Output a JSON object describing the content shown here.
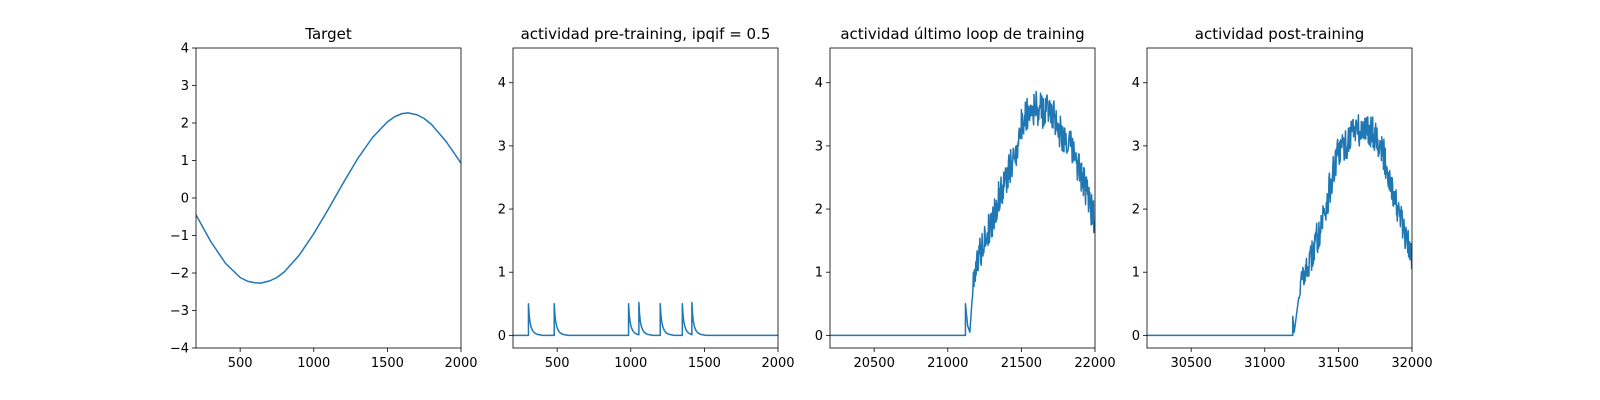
{
  "chart_data": [
    {
      "type": "line",
      "title": "Target",
      "xlabel": "",
      "ylabel": "",
      "xlim": [
        200,
        2000
      ],
      "ylim": [
        -4,
        4
      ],
      "xticks": [
        500,
        1000,
        1500,
        2000
      ],
      "yticks": [
        -4,
        -3,
        -2,
        -1,
        0,
        1,
        2,
        3,
        4
      ],
      "grid": false,
      "color": "#1f77b4",
      "series": [
        {
          "x": [
            200,
            300,
            400,
            500,
            550,
            600,
            640,
            700,
            750,
            800,
            900,
            1000,
            1100,
            1200,
            1300,
            1400,
            1500,
            1550,
            1600,
            1640,
            1700,
            1750,
            1800,
            1900,
            2000
          ],
          "y": [
            -0.45,
            -1.16,
            -1.74,
            -2.12,
            -2.22,
            -2.26,
            -2.27,
            -2.21,
            -2.12,
            -1.97,
            -1.53,
            -0.95,
            -0.29,
            0.4,
            1.06,
            1.62,
            2.03,
            2.17,
            2.25,
            2.27,
            2.22,
            2.12,
            1.96,
            1.5,
            0.93
          ]
        }
      ]
    },
    {
      "type": "line",
      "title": "actividad pre-training, ipqif = 0.5",
      "xlabel": "",
      "ylabel": "",
      "xlim": [
        200,
        2000
      ],
      "ylim": [
        -0.2,
        4.55
      ],
      "xticks": [
        500,
        1000,
        1500,
        2000
      ],
      "yticks": [
        0,
        1,
        2,
        3,
        4
      ],
      "grid": false,
      "color": "#1f77b4",
      "series": [
        {
          "x": [
            200,
            305,
            305,
            310,
            315,
            322,
            332,
            345,
            365,
            400,
            480,
            480,
            485,
            490,
            497,
            507,
            520,
            540,
            575,
            985,
            985,
            990,
            995,
            1002,
            1012,
            1025,
            1045,
            1055,
            1055,
            1060,
            1065,
            1072,
            1082,
            1095,
            1115,
            1150,
            1200,
            1200,
            1205,
            1210,
            1217,
            1227,
            1240,
            1260,
            1295,
            1350,
            1350,
            1355,
            1360,
            1367,
            1377,
            1390,
            1415,
            1415,
            1420,
            1425,
            1432,
            1442,
            1455,
            1475,
            1510,
            2000
          ],
          "y": [
            0,
            0,
            0.5,
            0.32,
            0.22,
            0.14,
            0.08,
            0.04,
            0.015,
            0,
            0,
            0.5,
            0.32,
            0.22,
            0.14,
            0.08,
            0.04,
            0.015,
            0,
            0,
            0.5,
            0.32,
            0.22,
            0.14,
            0.08,
            0.04,
            0.015,
            0.01,
            0.52,
            0.33,
            0.22,
            0.14,
            0.08,
            0.04,
            0.015,
            0,
            0,
            0.5,
            0.32,
            0.22,
            0.14,
            0.08,
            0.04,
            0.015,
            0,
            0,
            0.5,
            0.32,
            0.22,
            0.14,
            0.08,
            0.04,
            0.01,
            0.52,
            0.33,
            0.22,
            0.14,
            0.08,
            0.04,
            0.015,
            0,
            0
          ]
        }
      ]
    },
    {
      "type": "line",
      "title": "actividad último loop de training",
      "xlabel": "",
      "ylabel": "",
      "xlim": [
        20200,
        22000
      ],
      "ylim": [
        -0.2,
        4.55
      ],
      "xticks": [
        20500,
        21000,
        21500,
        22000
      ],
      "yticks": [
        0,
        1,
        2,
        3,
        4
      ],
      "grid": false,
      "color": "#1f77b4",
      "series": [
        {
          "x": [
            20200,
            21120,
            21120,
            21135,
            21150,
            21175,
            21200,
            21250,
            21300,
            21350,
            21400,
            21450,
            21500,
            21550,
            21600,
            21650,
            21700,
            21750,
            21800,
            21850,
            21900,
            21950,
            22000
          ],
          "y": [
            0,
            0,
            0.5,
            0.15,
            0.05,
            0.9,
            1.2,
            1.5,
            1.8,
            2.2,
            2.5,
            2.8,
            3.3,
            3.6,
            3.6,
            3.55,
            3.6,
            3.3,
            3.1,
            2.9,
            2.6,
            2.2,
            1.8
          ]
        }
      ]
    },
    {
      "type": "line",
      "title": "actividad post-training",
      "xlabel": "",
      "ylabel": "",
      "xlim": [
        30200,
        32000
      ],
      "ylim": [
        -0.2,
        4.55
      ],
      "xticks": [
        30500,
        31000,
        31500,
        32000
      ],
      "yticks": [
        0,
        1,
        2,
        3,
        4
      ],
      "grid": false,
      "color": "#1f77b4",
      "series": [
        {
          "x": [
            30200,
            31190,
            31190,
            31200,
            31225,
            31250,
            31300,
            31350,
            31400,
            31450,
            31500,
            31550,
            31600,
            31650,
            31700,
            31750,
            31800,
            31850,
            31900,
            31950,
            32000
          ],
          "y": [
            0,
            0,
            0.3,
            0.05,
            0.5,
            0.9,
            1.1,
            1.5,
            1.9,
            2.4,
            2.9,
            3.0,
            3.3,
            3.2,
            3.3,
            3.2,
            2.9,
            2.5,
            2.0,
            1.6,
            1.2
          ]
        }
      ]
    }
  ]
}
